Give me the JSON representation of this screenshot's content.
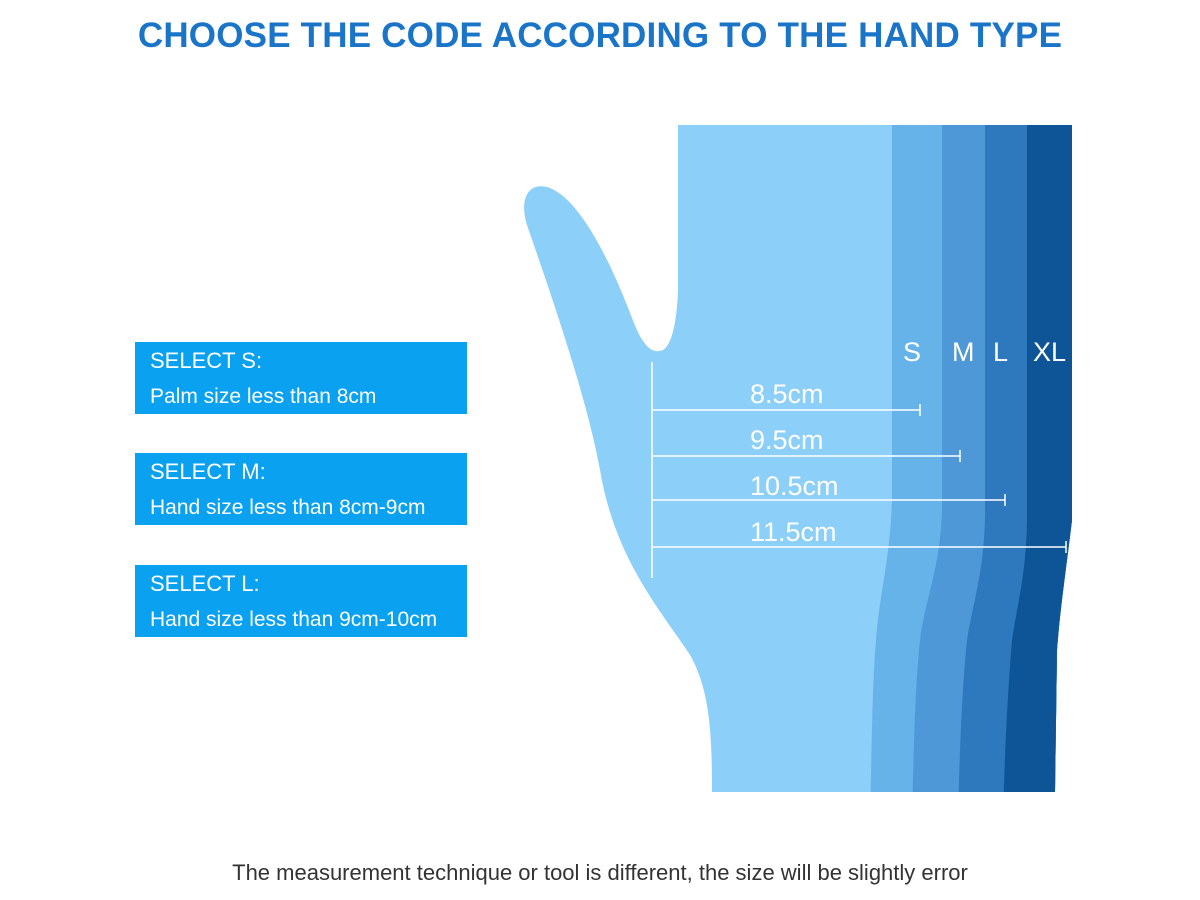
{
  "title": "CHOOSE THE CODE ACCORDING TO THE HAND TYPE",
  "select_boxes": [
    {
      "heading": "SELECT S:",
      "description": "Palm size less than 8cm"
    },
    {
      "heading": "SELECT M:",
      "description": "Hand size less than 8cm-9cm"
    },
    {
      "heading": "SELECT L:",
      "description": "Hand size less than 9cm-10cm"
    }
  ],
  "size_labels": [
    "S",
    "M",
    "L",
    "XL"
  ],
  "measurements": [
    "8.5cm",
    "9.5cm",
    "10.5cm",
    "11.5cm"
  ],
  "footer_note": "The measurement technique or tool is different, the size will be slightly error",
  "colors": {
    "title": "#1a75c9",
    "box_bg": "#0aa1f0",
    "hand_base": "#8ccff8",
    "band_s": "#66b3ea",
    "band_m": "#4e98d8",
    "band_l": "#2e79bd",
    "band_xl": "#0d5597"
  }
}
